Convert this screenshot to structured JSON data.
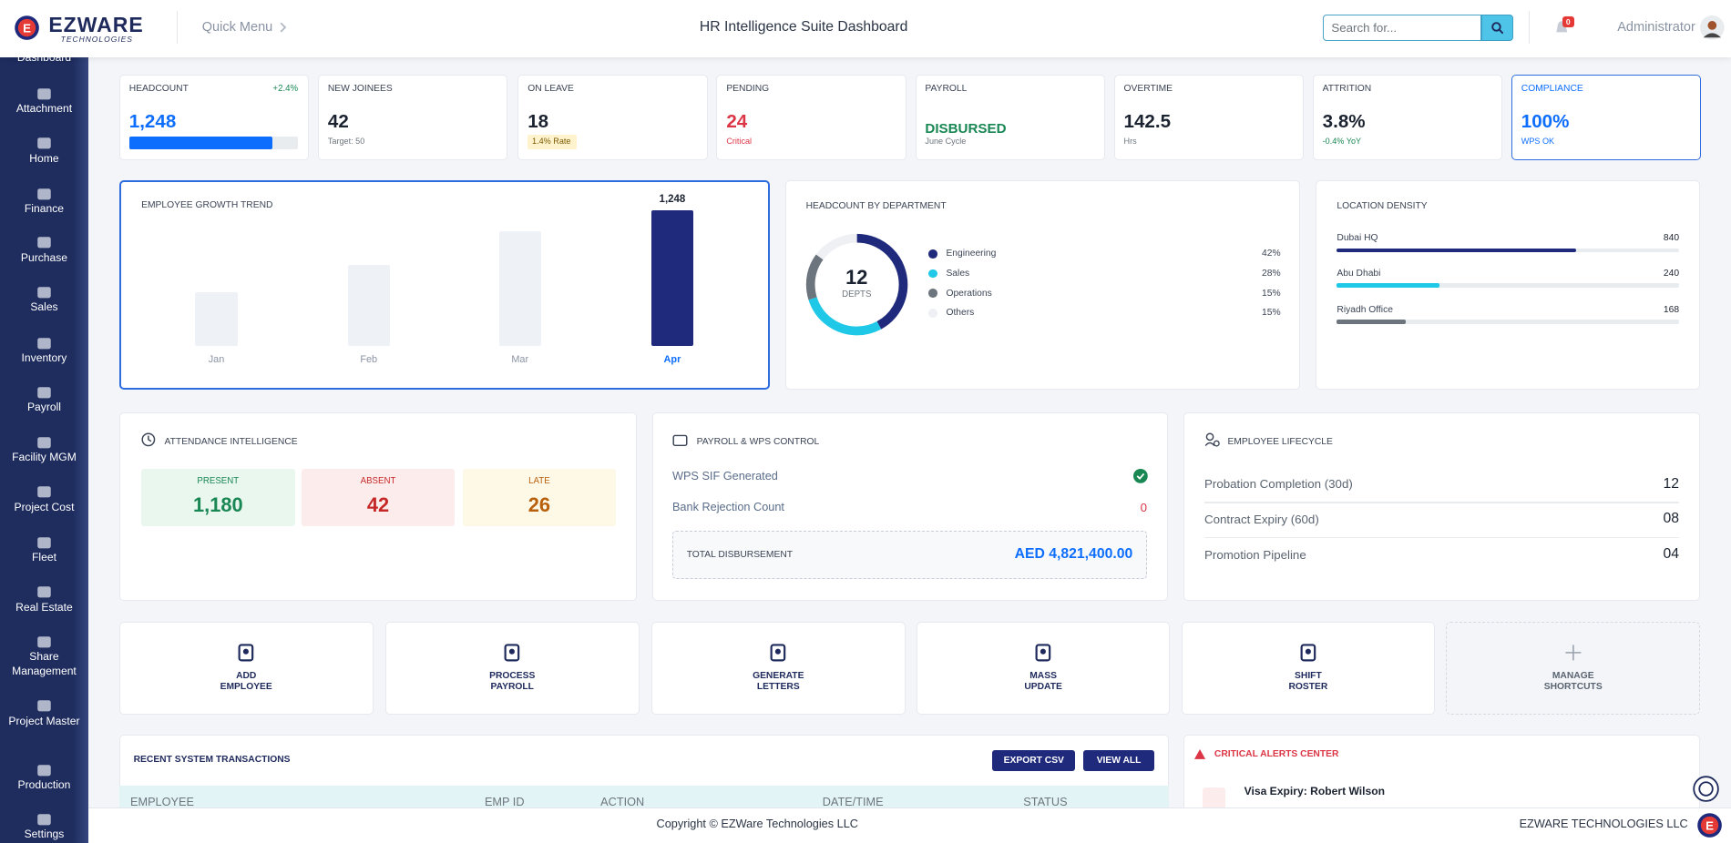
{
  "header": {
    "brand": "EZWARE",
    "brand_sub": "TECHNOLOGIES",
    "quick_menu": "Quick Menu",
    "title": "HR Intelligence Suite Dashboard",
    "search_placeholder": "Search for...",
    "notifications": 0,
    "user": "Administrator"
  },
  "sidebar": [
    "Dashboard",
    "Attachment",
    "Home",
    "Finance",
    "Purchase",
    "Sales",
    "Inventory",
    "Payroll",
    "Facility MGM",
    "Project Cost",
    "Fleet",
    "Real Estate",
    "Share Management",
    "Project Master",
    "Production",
    "Settings"
  ],
  "kpis": [
    {
      "label": "HEADCOUNT",
      "value": "1,248",
      "change": "+2.4%",
      "progress": 85
    },
    {
      "label": "NEW JOINEES",
      "value": "42",
      "note": "Target: 50"
    },
    {
      "label": "ON LEAVE",
      "value": "18",
      "note": "1.4% Rate"
    },
    {
      "label": "PENDING",
      "value": "24",
      "note": "Critical"
    },
    {
      "label": "PAYROLL",
      "value": "DISBURSED",
      "note": "June Cycle"
    },
    {
      "label": "OVERTIME",
      "value": "142.5",
      "note": "Hrs"
    },
    {
      "label": "ATTRITION",
      "value": "3.8%",
      "note": "-0.4% YoY"
    },
    {
      "label": "COMPLIANCE",
      "value": "100%",
      "note": "WPS OK"
    }
  ],
  "chart_data": [
    {
      "type": "bar",
      "title": "EMPLOYEE GROWTH TREND",
      "categories": [
        "Jan",
        "Feb",
        "Mar",
        "Apr"
      ],
      "values": [
        500,
        750,
        1060,
        1248
      ],
      "value_labels": [
        null,
        null,
        null,
        "1,248"
      ],
      "colors": [
        "#eef1f5",
        "#eef1f5",
        "#eef1f5",
        "#1f2a7c"
      ]
    },
    {
      "type": "pie",
      "title": "HEADCOUNT BY DEPARTMENT",
      "center_value": "12",
      "center_label": "DEPTS",
      "categories": [
        "Engineering",
        "Sales",
        "Operations",
        "Others"
      ],
      "values": [
        42,
        28,
        15,
        15
      ],
      "value_labels": [
        "42%",
        "28%",
        "15%",
        "15%"
      ],
      "colors": [
        "#1f2a7c",
        "#1ec8e6",
        "#6c757d",
        "#eef0f3"
      ]
    },
    {
      "type": "bar",
      "orientation": "horizontal",
      "title": "LOCATION DENSITY",
      "categories": [
        "Dubai HQ",
        "Abu Dhabi",
        "Riyadh Office"
      ],
      "values": [
        840,
        240,
        168
      ],
      "fill_percent": [
        70,
        30,
        20
      ],
      "colors": [
        "#1f2a7c",
        "#1ec8e6",
        "#6c757d"
      ]
    }
  ],
  "attendance": {
    "title": "ATTENDANCE INTELLIGENCE",
    "items": [
      {
        "label": "PRESENT",
        "value": "1,180"
      },
      {
        "label": "ABSENT",
        "value": "42"
      },
      {
        "label": "LATE",
        "value": "26"
      }
    ]
  },
  "payroll": {
    "title": "PAYROLL & WPS CONTROL",
    "rows": [
      {
        "label": "WPS SIF Generated"
      },
      {
        "label": "Bank Rejection Count",
        "value": "0"
      }
    ],
    "total_label": "TOTAL DISBURSEMENT",
    "total_value": "AED 4,821,400.00"
  },
  "lifecycle": {
    "title": "EMPLOYEE LIFECYCLE",
    "rows": [
      {
        "label": "Probation Completion (30d)",
        "value": "12"
      },
      {
        "label": "Contract Expiry (60d)",
        "value": "08"
      },
      {
        "label": "Promotion Pipeline",
        "value": "04"
      }
    ]
  },
  "shortcuts": [
    [
      "ADD",
      "EMPLOYEE"
    ],
    [
      "PROCESS",
      "PAYROLL"
    ],
    [
      "GENERATE",
      "LETTERS"
    ],
    [
      "MASS",
      "UPDATE"
    ],
    [
      "SHIFT",
      "ROSTER"
    ],
    [
      "MANAGE",
      "SHORTCUTS"
    ]
  ],
  "transactions": {
    "title": "RECENT SYSTEM TRANSACTIONS",
    "buttons": [
      "EXPORT CSV",
      "VIEW ALL"
    ],
    "columns": [
      "EMPLOYEE",
      "EMP ID",
      "ACTION",
      "DATE/TIME",
      "STATUS"
    ]
  },
  "alerts": {
    "title": "CRITICAL ALERTS CENTER",
    "items": [
      {
        "title": "Visa Expiry: Robert Wilson"
      }
    ]
  },
  "footer": {
    "copyright": "Copyright © EZWare Technologies LLC",
    "company": "EZWARE TECHNOLOGIES LLC"
  }
}
